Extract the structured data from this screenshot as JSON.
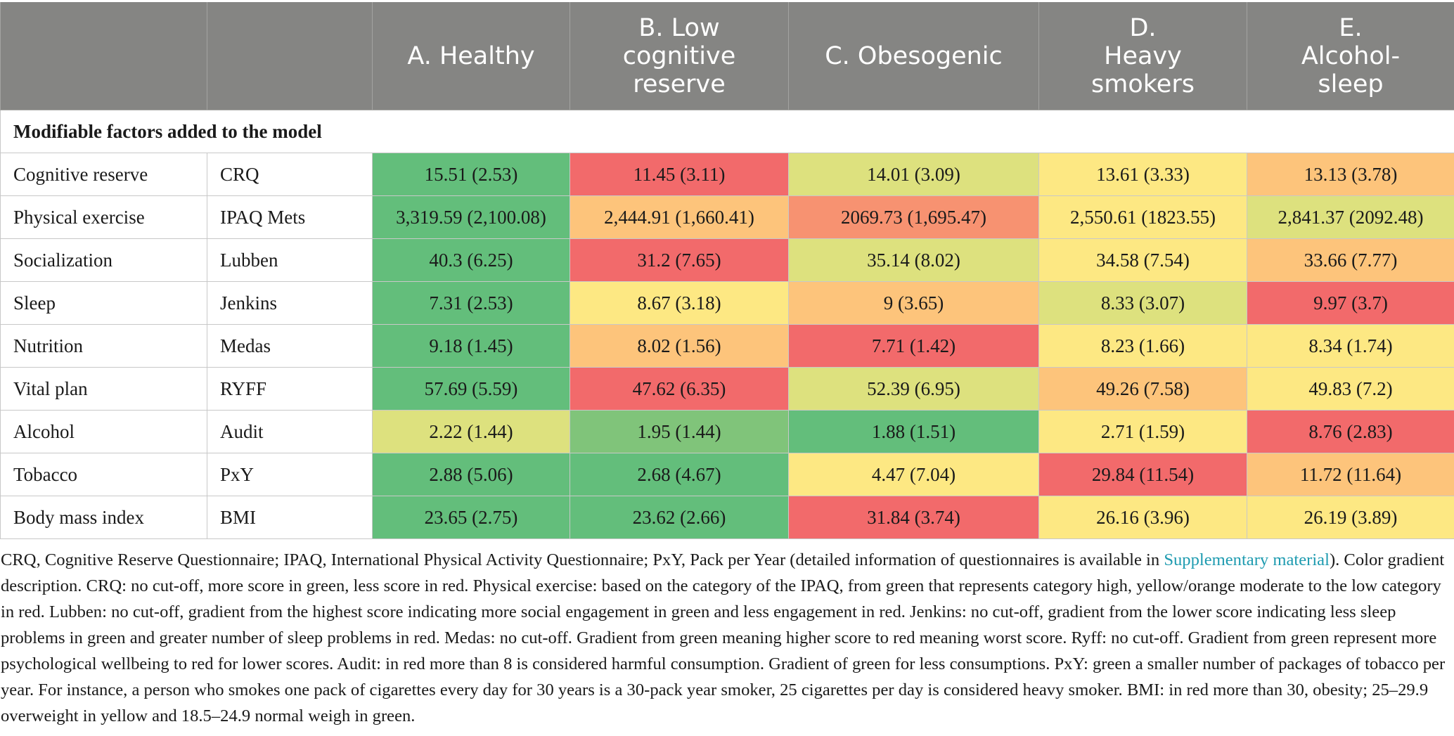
{
  "columns": {
    "a": "A. Healthy",
    "b": "B. Low cognitive reserve",
    "c": "C. Obesogenic",
    "d": "D. Heavy smokers",
    "e": "E. Alcohol-sleep"
  },
  "section_title": "Modifiable factors added to the model",
  "rows": [
    {
      "factor": "Cognitive reserve",
      "measure": "CRQ",
      "values": [
        "15.51 (2.53)",
        "11.45 (3.11)",
        "14.01 (3.09)",
        "13.61 (3.33)",
        "13.13 (3.78)"
      ]
    },
    {
      "factor": "Physical exercise",
      "measure": "IPAQ Mets",
      "values": [
        "3,319.59 (2,100.08)",
        "2,444.91 (1,660.41)",
        "2069.73 (1,695.47)",
        "2,550.61 (1823.55)",
        "2,841.37 (2092.48)"
      ]
    },
    {
      "factor": "Socialization",
      "measure": "Lubben",
      "values": [
        "40.3 (6.25)",
        "31.2 (7.65)",
        "35.14 (8.02)",
        "34.58 (7.54)",
        "33.66 (7.77)"
      ]
    },
    {
      "factor": "Sleep",
      "measure": "Jenkins",
      "values": [
        "7.31 (2.53)",
        "8.67 (3.18)",
        "9 (3.65)",
        "8.33 (3.07)",
        "9.97 (3.7)"
      ]
    },
    {
      "factor": "Nutrition",
      "measure": "Medas",
      "values": [
        "9.18 (1.45)",
        "8.02 (1.56)",
        "7.71 (1.42)",
        "8.23 (1.66)",
        "8.34 (1.74)"
      ]
    },
    {
      "factor": "Vital plan",
      "measure": "RYFF",
      "values": [
        "57.69 (5.59)",
        "47.62 (6.35)",
        "52.39 (6.95)",
        "49.26 (7.58)",
        "49.83 (7.2)"
      ]
    },
    {
      "factor": "Alcohol",
      "measure": "Audit",
      "values": [
        "2.22 (1.44)",
        "1.95 (1.44)",
        "1.88 (1.51)",
        "2.71 (1.59)",
        "8.76 (2.83)"
      ]
    },
    {
      "factor": "Tobacco",
      "measure": "PxY",
      "values": [
        "2.88 (5.06)",
        "2.68 (4.67)",
        "4.47 (7.04)",
        "29.84 (11.54)",
        "11.72 (11.64)"
      ]
    },
    {
      "factor": "Body mass index",
      "measure": "BMI",
      "values": [
        "23.65 (2.75)",
        "23.62 (2.66)",
        "31.84 (3.74)",
        "26.16 (3.96)",
        "26.19 (3.89)"
      ]
    }
  ],
  "cell_colors": {
    "green": "#63be7b",
    "light_green": "#80c47a",
    "yellow_green": "#dde17e",
    "yellow": "#fde883",
    "orange": "#fdc47b",
    "orange_red": "#f79271",
    "red": "#f26a6b"
  },
  "header_color": "#858583",
  "link_color": "#1e9bb0",
  "footnote": {
    "before_link": "CRQ, Cognitive Reserve Questionnaire; IPAQ, International Physical Activity Questionnaire; PxY, Pack per Year (detailed information of questionnaires is available in ",
    "link_text": "Supplementary material",
    "after_link": "). Color gradient description. CRQ: no cut-off, more score in green, less score in red. Physical exercise: based on the category of the IPAQ, from green that represents category high, yellow/orange moderate to the low category in red. Lubben: no cut-off, gradient from the highest score indicating more social engagement in green and less engagement in red. Jenkins: no cut-off, gradient from the lower score indicating less sleep problems in green and greater number of sleep problems in red. Medas: no cut-off. Gradient from green meaning higher score to red meaning worst score. Ryff: no cut-off. Gradient from green represent more psychological wellbeing to red for lower scores. Audit: in red more than 8 is considered harmful consumption. Gradient of green for less consumptions. PxY: green a smaller number of packages of tobacco per year. For instance, a person who smokes one pack of cigarettes every day for 30 years is a 30-pack year smoker, 25 cigarettes per day is considered heavy smoker. BMI: in red more than 30, obesity; 25–29.9 overweight in yellow and 18.5–24.9 normal weigh in green."
  }
}
